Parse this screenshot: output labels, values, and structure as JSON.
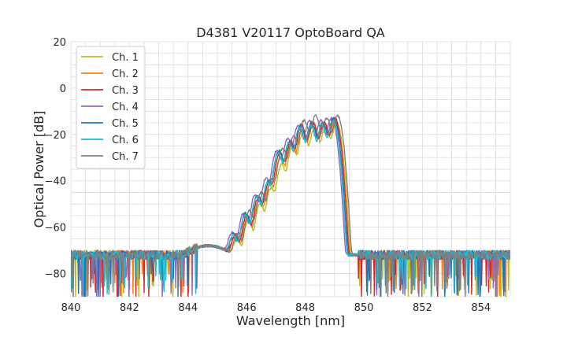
{
  "chart_data": {
    "type": "line",
    "title": "D4381 V20117 OptoBoard QA",
    "xlabel": "Wavelength [nm]",
    "ylabel": "Optical Power [dB]",
    "xlim": [
      840,
      855
    ],
    "ylim": [
      -90,
      20
    ],
    "xticks": [
      840,
      842,
      844,
      846,
      848,
      850,
      852,
      854
    ],
    "yticks": [
      20,
      0,
      -20,
      -40,
      -60,
      -80
    ],
    "xminor_step": 0.5,
    "yminor_step": 5,
    "grid": true,
    "legend_position": "top-left",
    "peak_wavelengths_nm": [
      845.55,
      845.95,
      846.35,
      846.72,
      847.08,
      847.45,
      847.82,
      848.2,
      848.58,
      848.95
    ],
    "series": [
      {
        "name": "Ch. 1",
        "color": "#bcbd22",
        "shift_nm": 0.12,
        "peak_levels_db": [
          -66,
          -57,
          -50,
          -43,
          -33,
          -25,
          -19,
          -17,
          -17,
          -15
        ]
      },
      {
        "name": "Ch. 2",
        "color": "#ff7f0e",
        "shift_nm": 0.08,
        "peak_levels_db": [
          -64,
          -56,
          -48,
          -41,
          -30,
          -24,
          -18,
          -15,
          -15,
          -14
        ]
      },
      {
        "name": "Ch. 3",
        "color": "#d62728",
        "shift_nm": 0.06,
        "peak_levels_db": [
          -64,
          -55,
          -47,
          -40,
          -28,
          -23,
          -16,
          -15,
          -15,
          -13
        ]
      },
      {
        "name": "Ch. 4",
        "color": "#9467bd",
        "shift_nm": -0.05,
        "peak_levels_db": [
          -63,
          -54,
          -46,
          -39,
          -27,
          -22,
          -16,
          -14,
          -14,
          -13
        ]
      },
      {
        "name": "Ch. 5",
        "color": "#1f77b4",
        "shift_nm": 0.02,
        "peak_levels_db": [
          -63,
          -54,
          -46,
          -40,
          -27,
          -23,
          -16,
          -15,
          -15,
          -13
        ]
      },
      {
        "name": "Ch. 6",
        "color": "#17becf",
        "shift_nm": 0.0,
        "peak_levels_db": [
          -64,
          -55,
          -47,
          -41,
          -28,
          -24,
          -17,
          -16,
          -16,
          -14
        ]
      },
      {
        "name": "Ch. 7",
        "color": "#7f7f7f",
        "shift_nm": 0.15,
        "peak_levels_db": [
          -63,
          -53,
          -45,
          -39,
          -26,
          -21,
          -14,
          -12,
          -13,
          -12
        ]
      }
    ]
  }
}
